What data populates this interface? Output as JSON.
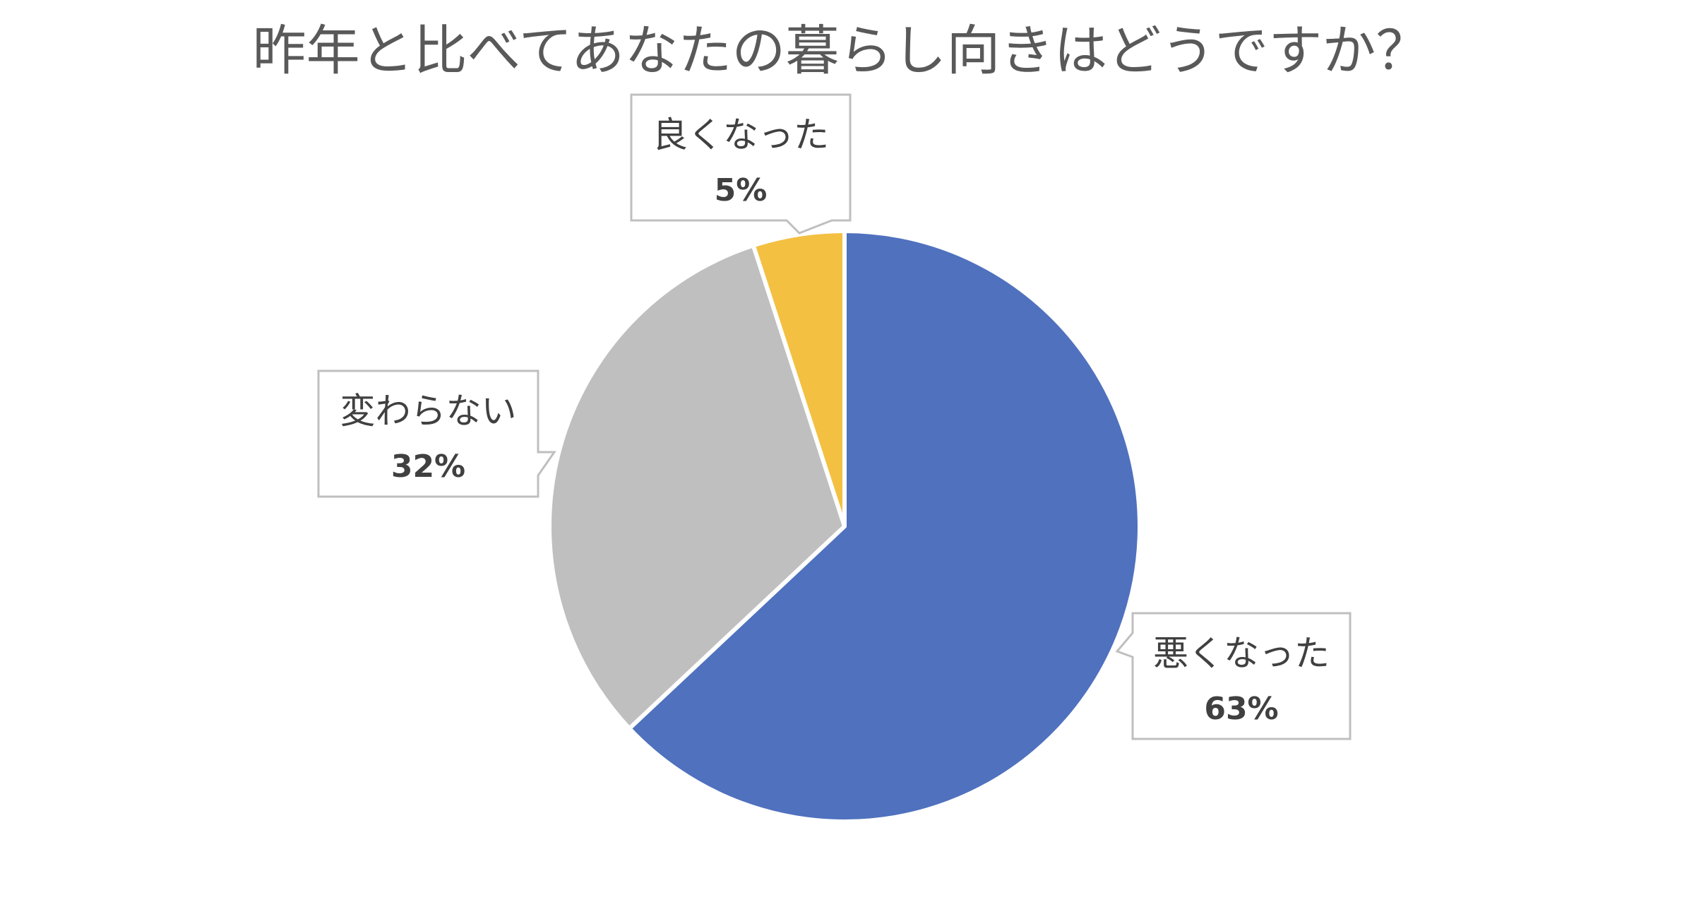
{
  "chart_data": {
    "type": "pie",
    "title": "昨年と比べてあなたの暮らし向きはどうですか？",
    "slices": [
      {
        "label": "悪くなった",
        "value": 63,
        "display": "63%",
        "color": "#4F71BE"
      },
      {
        "label": "変わらない",
        "value": 32,
        "display": "32%",
        "color": "#BFBFBF"
      },
      {
        "label": "良くなった",
        "value": 5,
        "display": "5%",
        "color": "#F3C042"
      }
    ],
    "start": "12 o'clock",
    "direction": "clockwise",
    "legend": "none",
    "data_labels": "callouts"
  }
}
